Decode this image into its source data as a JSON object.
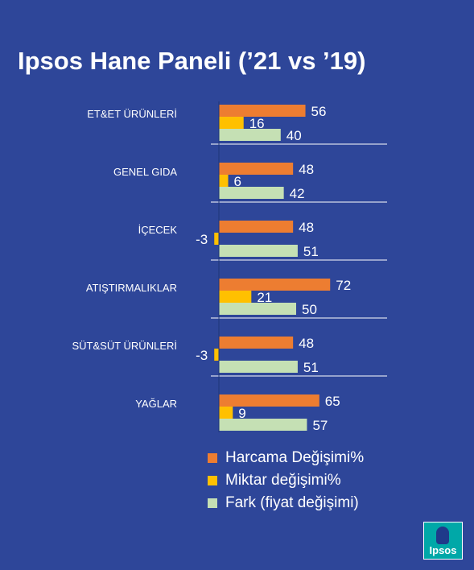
{
  "title": "Ipsos Hane Paneli (’21 vs ’19)",
  "colors": {
    "background": "#2e4699",
    "harcama": "#ed7d31",
    "miktar": "#ffc000",
    "fark": "#c5e0b4",
    "separator": "#ffffff"
  },
  "chart_data": {
    "type": "bar",
    "orientation": "horizontal",
    "categories": [
      "ET&ET ÜRÜNLERİ",
      "GENEL GIDA",
      "İÇECEK",
      "ATIŞTIRMALIKLAR",
      "SÜT&SÜT ÜRÜNLERİ",
      "YAĞLAR"
    ],
    "series": [
      {
        "name": "Harcama Değişimi%",
        "values": [
          56,
          48,
          48,
          72,
          48,
          65
        ]
      },
      {
        "name": "Miktar değişimi%",
        "values": [
          16,
          6,
          -3,
          21,
          -3,
          9
        ]
      },
      {
        "name": "Fark (fiyat değişimi)",
        "values": [
          40,
          42,
          51,
          50,
          51,
          57
        ]
      }
    ],
    "legend_position": "bottom-right",
    "data_labels": true
  },
  "logo": {
    "text": "Ipsos"
  }
}
